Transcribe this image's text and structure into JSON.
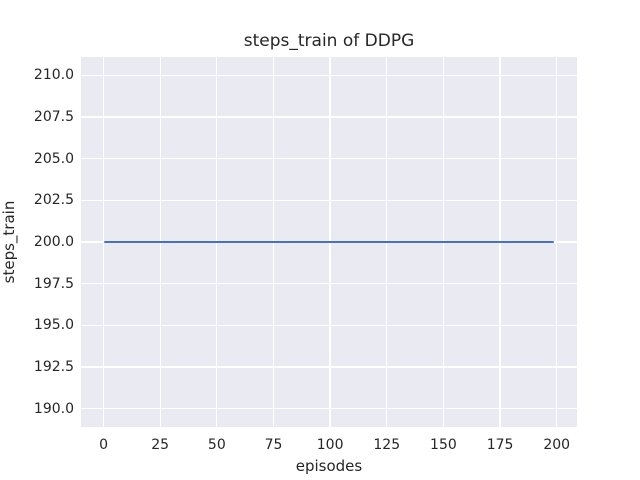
{
  "colors": {
    "figure_background": "#ffffff",
    "axes_background": "#eaeaf2",
    "grid": "#ffffff",
    "line": "#4c72b0",
    "text": "#262626"
  },
  "chart_data": {
    "type": "line",
    "title": "steps_train of DDPG",
    "xlabel": "episodes",
    "ylabel": "steps_train",
    "xlim": [
      -9.95,
      208.95
    ],
    "ylim": [
      188.9,
      211.1
    ],
    "xticks": [
      0,
      25,
      50,
      75,
      100,
      125,
      150,
      175,
      200
    ],
    "xtick_labels": [
      "0",
      "25",
      "50",
      "75",
      "100",
      "125",
      "150",
      "175",
      "200"
    ],
    "yticks": [
      190.0,
      192.5,
      195.0,
      197.5,
      200.0,
      202.5,
      205.0,
      207.5,
      210.0
    ],
    "ytick_labels": [
      "190.0",
      "192.5",
      "195.0",
      "197.5",
      "200.0",
      "202.5",
      "205.0",
      "207.5",
      "210.0"
    ],
    "grid": true,
    "legend": "none",
    "series": [
      {
        "name": "steps_train",
        "x": [
          0,
          199
        ],
        "y": [
          200,
          200
        ],
        "color": "#4c72b0",
        "note": "constant value 200 for every episode from 0 to 199"
      }
    ]
  }
}
